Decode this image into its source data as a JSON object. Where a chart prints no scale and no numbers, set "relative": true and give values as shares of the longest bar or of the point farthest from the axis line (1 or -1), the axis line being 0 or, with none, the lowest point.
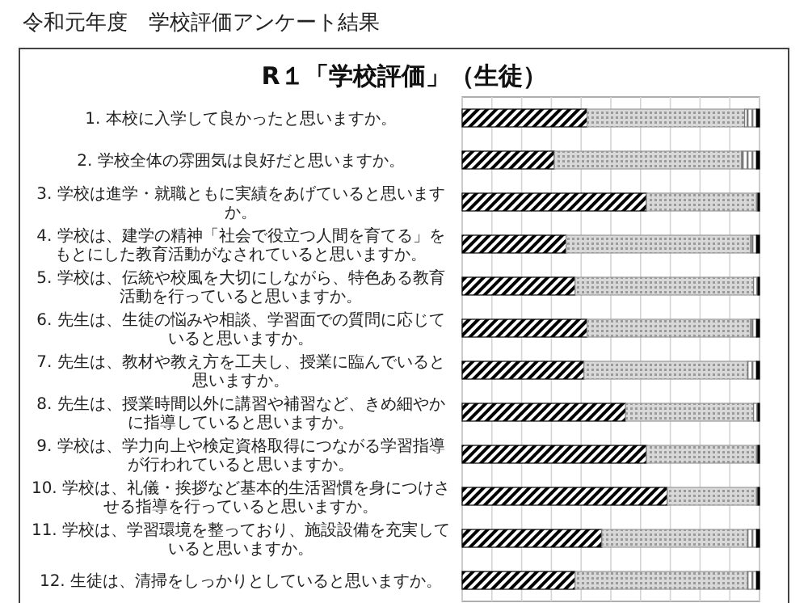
{
  "chart_data": {
    "type": "bar",
    "orientation": "horizontal",
    "stacked": true,
    "relative": true,
    "grid": "x",
    "title": "令和元年度　学校評価アンケート結果",
    "subtitle": "R１「学校評価」（生徒）",
    "categories": [
      "1. 本校に入学して良かったと思いますか。",
      "2. 学校全体の雰囲気は良好だと思いますか。",
      "3. 学校は進学・就職ともに実績をあげていると思いますか。",
      "4. 学校は、建学の精神「社会で役立つ人間を育てる」をもとにした教育活動がなされていると思いますか。",
      "5. 学校は、伝統や校風を大切にしながら、特色ある教育活動を行っていると思いますか。",
      "6. 先生は、生徒の悩みや相談、学習面での質問に応じていると思いますか。",
      "7. 先生は、教材や教え方を工夫し、授業に臨んでいると思いますか。",
      "8. 先生は、授業時間以外に講習や補習など、きめ細やかに指導していると思いますか。",
      "9. 学校は、学力向上や検定資格取得につながる学習指導が行われていると思いますか。",
      "10. 学校は、礼儀・挨拶など基本的生活習慣を身につけさせる指導を行っていると思いますか。",
      "11. 学校は、学習環境を整っており、施設設備を充実していると思いますか。",
      "12. 生徒は、清掃をしっかりとしていると思いますか。"
    ],
    "series": [
      {
        "color": "#000000",
        "values": [
          0.42,
          0.31,
          0.62,
          0.35,
          0.38,
          0.42,
          0.41,
          0.55,
          0.62,
          0.69,
          0.47,
          0.38
        ]
      },
      {
        "color": "#9a9a9a",
        "values": [
          0.53,
          0.63,
          0.37,
          0.62,
          0.6,
          0.55,
          0.55,
          0.43,
          0.37,
          0.3,
          0.49,
          0.58
        ]
      },
      {
        "color": "#7a7a7a",
        "values": [
          0.04,
          0.05,
          0.005,
          0.02,
          0.015,
          0.02,
          0.03,
          0.015,
          0.005,
          0.005,
          0.03,
          0.03
        ]
      },
      {
        "color": "#000000",
        "values": [
          0.01,
          0.01,
          0.005,
          0.01,
          0.005,
          0.01,
          0.01,
          0.005,
          0.005,
          0.005,
          0.01,
          0.01
        ]
      }
    ]
  }
}
